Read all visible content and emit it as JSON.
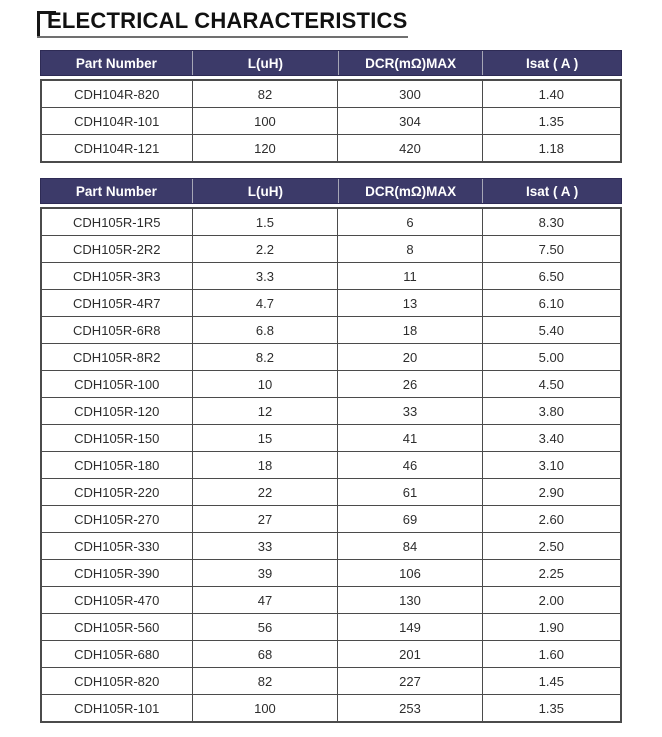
{
  "page": {
    "title": "ELECTRICAL CHARACTERISTICS"
  },
  "colors": {
    "header_bg": "#3c3a69",
    "header_text": "#ffffff",
    "header_divider": "#a6a6b6",
    "table_border": "#4b4b4b",
    "title_bracket": "#161616",
    "title_underline": "#707070",
    "cell_text": "#2d2d2d"
  },
  "tables": [
    {
      "columns": [
        "Part Number",
        "L(uH)",
        "DCR(mΩ)MAX",
        "Isat ( A )"
      ],
      "rows": [
        [
          "CDH104R-820",
          "82",
          "300",
          "1.40"
        ],
        [
          "CDH104R-101",
          "100",
          "304",
          "1.35"
        ],
        [
          "CDH104R-121",
          "120",
          "420",
          "1.18"
        ]
      ]
    },
    {
      "columns": [
        "Part Number",
        "L(uH)",
        "DCR(mΩ)MAX",
        "Isat ( A )"
      ],
      "rows": [
        [
          "CDH105R-1R5",
          "1.5",
          "6",
          "8.30"
        ],
        [
          "CDH105R-2R2",
          "2.2",
          "8",
          "7.50"
        ],
        [
          "CDH105R-3R3",
          "3.3",
          "11",
          "6.50"
        ],
        [
          "CDH105R-4R7",
          "4.7",
          "13",
          "6.10"
        ],
        [
          "CDH105R-6R8",
          "6.8",
          "18",
          "5.40"
        ],
        [
          "CDH105R-8R2",
          "8.2",
          "20",
          "5.00"
        ],
        [
          "CDH105R-100",
          "10",
          "26",
          "4.50"
        ],
        [
          "CDH105R-120",
          "12",
          "33",
          "3.80"
        ],
        [
          "CDH105R-150",
          "15",
          "41",
          "3.40"
        ],
        [
          "CDH105R-180",
          "18",
          "46",
          "3.10"
        ],
        [
          "CDH105R-220",
          "22",
          "61",
          "2.90"
        ],
        [
          "CDH105R-270",
          "27",
          "69",
          "2.60"
        ],
        [
          "CDH105R-330",
          "33",
          "84",
          "2.50"
        ],
        [
          "CDH105R-390",
          "39",
          "106",
          "2.25"
        ],
        [
          "CDH105R-470",
          "47",
          "130",
          "2.00"
        ],
        [
          "CDH105R-560",
          "56",
          "149",
          "1.90"
        ],
        [
          "CDH105R-680",
          "68",
          "201",
          "1.60"
        ],
        [
          "CDH105R-820",
          "82",
          "227",
          "1.45"
        ],
        [
          "CDH105R-101",
          "100",
          "253",
          "1.35"
        ]
      ]
    }
  ]
}
